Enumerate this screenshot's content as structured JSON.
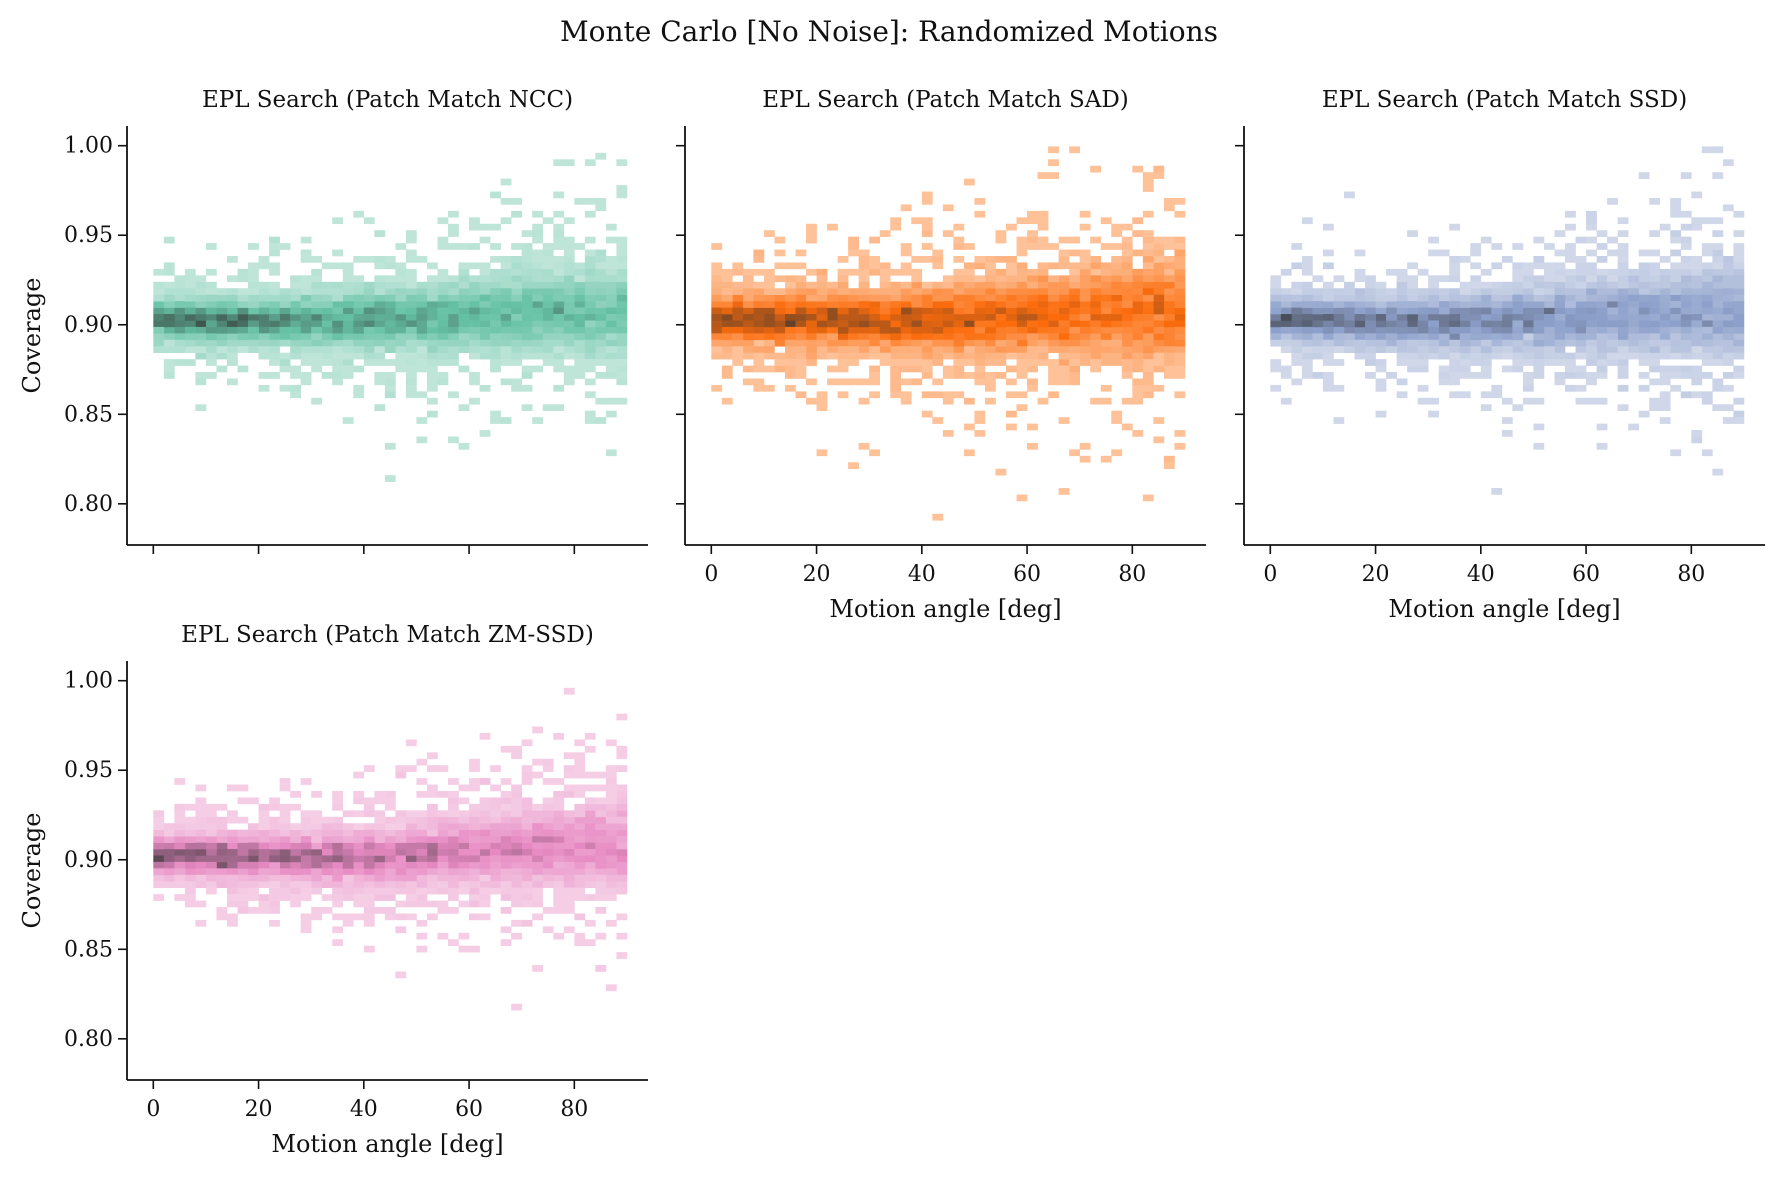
{
  "figure": {
    "title": "Monte Carlo [No Noise]: Randomized Motions"
  },
  "chart_data": [
    {
      "type": "heatmap",
      "title": "EPL Search (Patch Match NCC)",
      "xlabel": "",
      "ylabel": "Coverage",
      "xlim": [
        -5,
        94
      ],
      "ylim": [
        0.777,
        1.011
      ],
      "xticks": [
        0,
        20,
        40,
        60,
        80
      ],
      "xtick_labels_shown": false,
      "yticks": [
        0.8,
        0.85,
        0.9,
        0.95,
        1.0
      ],
      "ytick_labels": [
        "0.80",
        "0.85",
        "0.90",
        "0.95",
        "1.00"
      ],
      "ytick_labels_shown": true,
      "color": "#66c2a5",
      "bin_count_x": 45,
      "center_trend": [
        [
          0,
          0.903
        ],
        [
          20,
          0.902
        ],
        [
          40,
          0.903
        ],
        [
          60,
          0.905
        ],
        [
          80,
          0.907
        ],
        [
          90,
          0.908
        ]
      ],
      "spread_trend": [
        [
          0,
          0.01
        ],
        [
          30,
          0.012
        ],
        [
          60,
          0.017
        ],
        [
          90,
          0.022
        ]
      ],
      "outliers": [
        [
          44,
          0.813
        ],
        [
          66,
          0.845
        ],
        [
          82,
          0.845
        ],
        [
          86,
          0.829
        ]
      ]
    },
    {
      "type": "heatmap",
      "title": "EPL Search (Patch Match SAD)",
      "xlabel": "Motion angle [deg]",
      "ylabel": "",
      "xlim": [
        -5,
        94
      ],
      "ylim": [
        0.777,
        1.011
      ],
      "xticks": [
        0,
        20,
        40,
        60,
        80
      ],
      "xtick_labels": [
        "0",
        "20",
        "40",
        "60",
        "80"
      ],
      "xtick_labels_shown": true,
      "yticks": [
        0.8,
        0.85,
        0.9,
        0.95,
        1.0
      ],
      "ytick_labels_shown": false,
      "color": "#fc6c0c",
      "bin_count_x": 45,
      "center_trend": [
        [
          0,
          0.903
        ],
        [
          20,
          0.903
        ],
        [
          40,
          0.902
        ],
        [
          60,
          0.905
        ],
        [
          80,
          0.908
        ],
        [
          90,
          0.909
        ]
      ],
      "spread_trend": [
        [
          0,
          0.011
        ],
        [
          30,
          0.014
        ],
        [
          60,
          0.019
        ],
        [
          90,
          0.025
        ]
      ],
      "outliers": [
        [
          43,
          0.791
        ],
        [
          59,
          0.802
        ],
        [
          82,
          0.802
        ],
        [
          48,
          0.83
        ],
        [
          86,
          0.826
        ],
        [
          88,
          0.833
        ]
      ]
    },
    {
      "type": "heatmap",
      "title": "EPL Search (Patch Match SSD)",
      "xlabel": "Motion angle [deg]",
      "ylabel": "",
      "xlim": [
        -5,
        94
      ],
      "ylim": [
        0.777,
        1.011
      ],
      "xticks": [
        0,
        20,
        40,
        60,
        80
      ],
      "xtick_labels": [
        "0",
        "20",
        "40",
        "60",
        "80"
      ],
      "xtick_labels_shown": true,
      "yticks": [
        0.8,
        0.85,
        0.9,
        0.95,
        1.0
      ],
      "ytick_labels_shown": false,
      "color": "#8da0cb",
      "bin_count_x": 45,
      "center_trend": [
        [
          0,
          0.904
        ],
        [
          20,
          0.902
        ],
        [
          40,
          0.902
        ],
        [
          60,
          0.905
        ],
        [
          80,
          0.907
        ],
        [
          90,
          0.907
        ]
      ],
      "spread_trend": [
        [
          0,
          0.01
        ],
        [
          30,
          0.012
        ],
        [
          60,
          0.017
        ],
        [
          90,
          0.022
        ]
      ],
      "outliers": [
        [
          42,
          0.808
        ],
        [
          63,
          0.834
        ],
        [
          83,
          0.827
        ],
        [
          81,
          0.836
        ]
      ]
    },
    {
      "type": "heatmap",
      "title": "EPL Search (Patch Match ZM-SSD)",
      "xlabel": "Motion angle [deg]",
      "ylabel": "Coverage",
      "xlim": [
        -5,
        94
      ],
      "ylim": [
        0.777,
        1.011
      ],
      "xticks": [
        0,
        20,
        40,
        60,
        80
      ],
      "xtick_labels": [
        "0",
        "20",
        "40",
        "60",
        "80"
      ],
      "xtick_labels_shown": true,
      "yticks": [
        0.8,
        0.85,
        0.9,
        0.95,
        1.0
      ],
      "ytick_labels": [
        "0.80",
        "0.85",
        "0.90",
        "0.95",
        "1.00"
      ],
      "ytick_labels_shown": true,
      "color": "#e78ac3",
      "bin_count_x": 45,
      "center_trend": [
        [
          0,
          0.903
        ],
        [
          20,
          0.902
        ],
        [
          40,
          0.901
        ],
        [
          60,
          0.905
        ],
        [
          80,
          0.908
        ],
        [
          90,
          0.908
        ]
      ],
      "spread_trend": [
        [
          0,
          0.01
        ],
        [
          30,
          0.012
        ],
        [
          60,
          0.016
        ],
        [
          90,
          0.02
        ]
      ],
      "outliers": [
        [
          40,
          0.849
        ],
        [
          72,
          0.841
        ],
        [
          56,
          0.855
        ]
      ]
    }
  ]
}
